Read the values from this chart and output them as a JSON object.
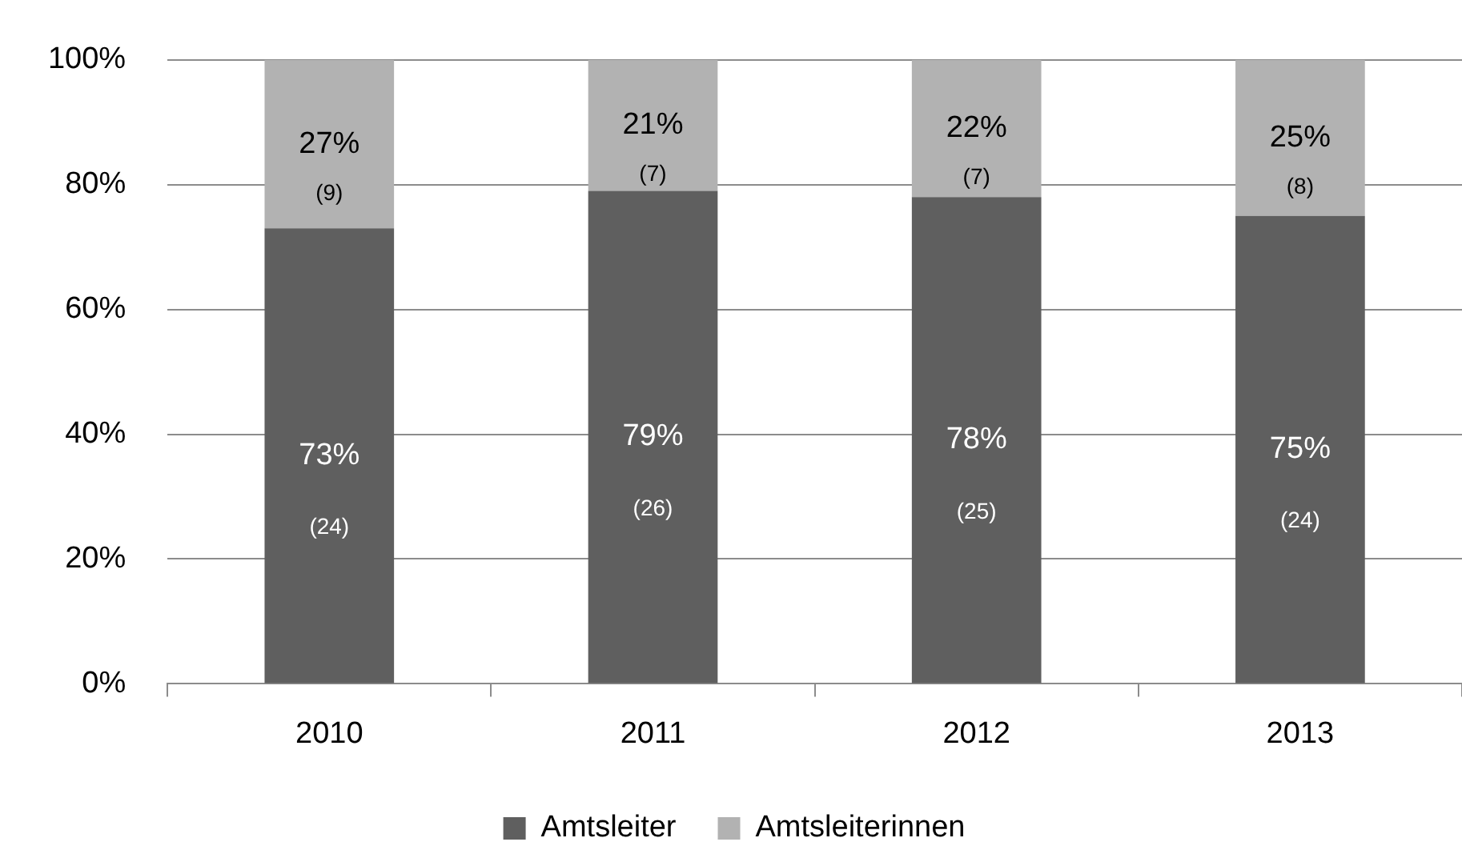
{
  "chart_data": {
    "type": "bar",
    "stacked": true,
    "categories": [
      "2010",
      "2011",
      "2012",
      "2013"
    ],
    "series": [
      {
        "name": "Amtsleiter",
        "color": "#5f5f5f",
        "values": [
          73,
          79,
          78,
          75
        ],
        "value_labels": [
          "73%\n(24)",
          "79%\n(26)",
          "78%\n(25)",
          "75%\n(24)"
        ]
      },
      {
        "name": "Amtsleiterinnen",
        "color": "#b2b2b2",
        "values": [
          27,
          21,
          22,
          25
        ],
        "value_labels": [
          "27%\n(9)",
          "21%\n(7)",
          "22%\n(7)",
          "25%\n(8)"
        ]
      }
    ],
    "ylim": [
      0,
      100
    ],
    "yticks": [
      {
        "value": 0,
        "label": "0%"
      },
      {
        "value": 20,
        "label": "20%"
      },
      {
        "value": 40,
        "label": "40%"
      },
      {
        "value": 60,
        "label": "60%"
      },
      {
        "value": 80,
        "label": "80%"
      },
      {
        "value": 100,
        "label": "100%"
      }
    ],
    "grid": "y",
    "legend": "bottom"
  }
}
